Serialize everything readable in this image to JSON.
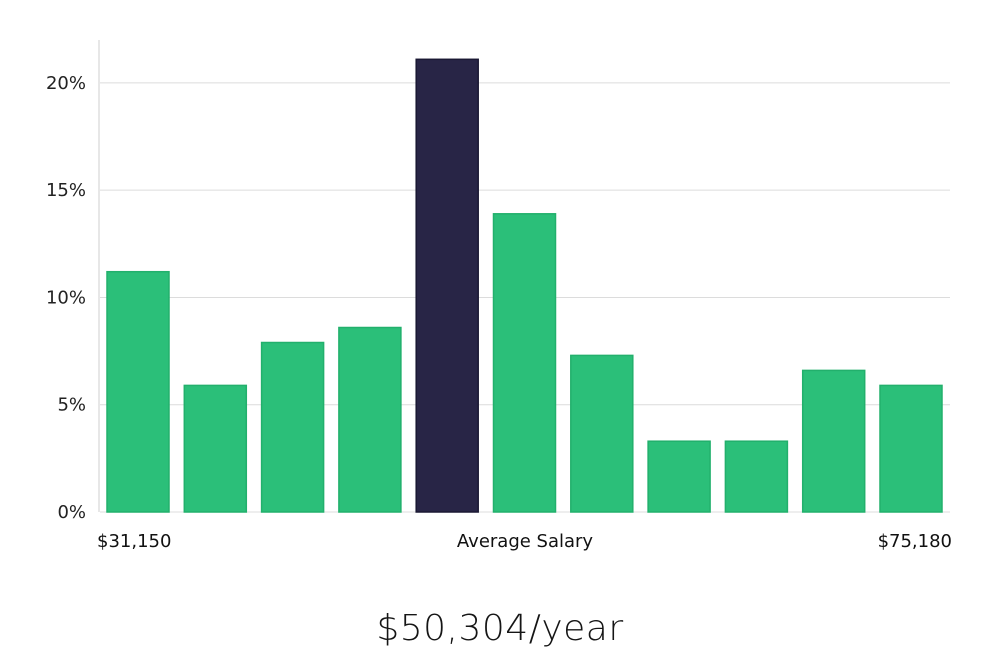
{
  "chart_data": {
    "type": "bar",
    "categories": [
      "1",
      "2",
      "3",
      "4",
      "5",
      "6",
      "7",
      "8",
      "9",
      "10",
      "11"
    ],
    "values": [
      11.2,
      5.9,
      7.9,
      8.6,
      21.1,
      13.9,
      7.3,
      3.3,
      3.3,
      6.6,
      5.9
    ],
    "highlight_index": 4,
    "ylim": [
      0,
      22
    ],
    "y_ticks": [
      0,
      5,
      10,
      15,
      20
    ],
    "y_tick_suffix": "%",
    "grid": true,
    "x_labels": {
      "left": "$31,150",
      "center": "Average Salary",
      "right": "$75,180"
    },
    "colors": {
      "bar": "#2bbf79",
      "bar_edge": "#22b06c",
      "highlight": "#282546",
      "highlight_edge": "#1a1833"
    }
  },
  "summary": {
    "salary_text": "$50,304/year"
  }
}
